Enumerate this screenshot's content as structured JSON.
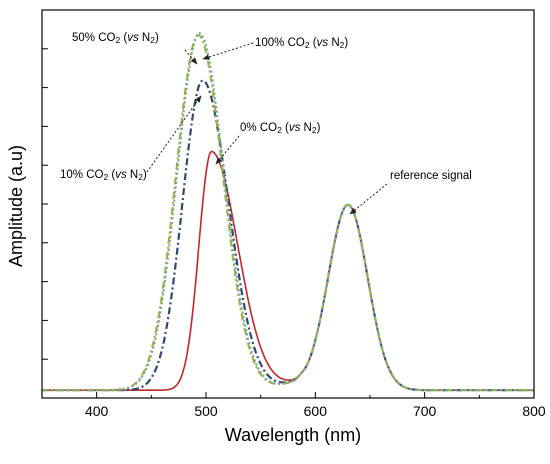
{
  "chart_data": {
    "type": "line",
    "xlabel": "Wavelength (nm)",
    "ylabel": "Amplitude (a.u)",
    "xlim": [
      350,
      800
    ],
    "x_ticks": [
      400,
      500,
      600,
      700,
      800
    ],
    "x_tick_labels": [
      "400",
      "500",
      "600",
      "700",
      "800"
    ],
    "y_tick_labels_shown": false,
    "y_ticks": [
      0.1,
      0.2,
      0.3,
      0.4,
      0.5,
      0.6,
      0.7,
      0.8,
      0.9
    ],
    "ylim": [
      0,
      1
    ],
    "grid": false,
    "legend": "none",
    "series": [
      {
        "key": "co2_0",
        "color": "#c0282b",
        "dash": "solid",
        "width": 1.6,
        "peak_x": 505,
        "peak_y": 0.635,
        "left_sigma": 11.5,
        "right_sigma": 24
      },
      {
        "key": "co2_10",
        "color": "#2d4a6e",
        "dash": "dashdot",
        "width": 2.2,
        "peak_x": 497,
        "peak_y": 0.818,
        "left_sigma": 18.5,
        "right_sigma": 23.5
      },
      {
        "key": "co2_50",
        "color": "#9fb83a",
        "dash": "dashdot",
        "width": 2.2,
        "peak_x": 493,
        "peak_y": 0.935,
        "left_sigma": 20.5,
        "right_sigma": 22.5
      },
      {
        "key": "co2_100",
        "color": "#79a3a0",
        "dash": "dotted",
        "width": 2.2,
        "peak_x": 494,
        "peak_y": 0.94,
        "left_sigma": 20.5,
        "right_sigma": 22.5
      }
    ],
    "reference_peak": {
      "x": 630,
      "y": 0.495,
      "sigma": 18
    },
    "annotations": [
      {
        "key": "a50",
        "text_parts": [
          "50% CO",
          "2",
          " (",
          "vs",
          " N",
          "2",
          ")"
        ]
      },
      {
        "key": "a100",
        "text_parts": [
          "100% CO",
          "2",
          " (",
          "vs",
          " N",
          "2",
          ")"
        ]
      },
      {
        "key": "a0",
        "text_parts": [
          "0% CO",
          "2",
          " (",
          "vs",
          " N",
          "2",
          ")"
        ]
      },
      {
        "key": "a10",
        "text_parts": [
          "10% CO",
          "2",
          " (",
          "vs",
          " N",
          "2",
          ")"
        ]
      },
      {
        "key": "aref",
        "text_parts": [
          "reference signal"
        ]
      }
    ]
  }
}
